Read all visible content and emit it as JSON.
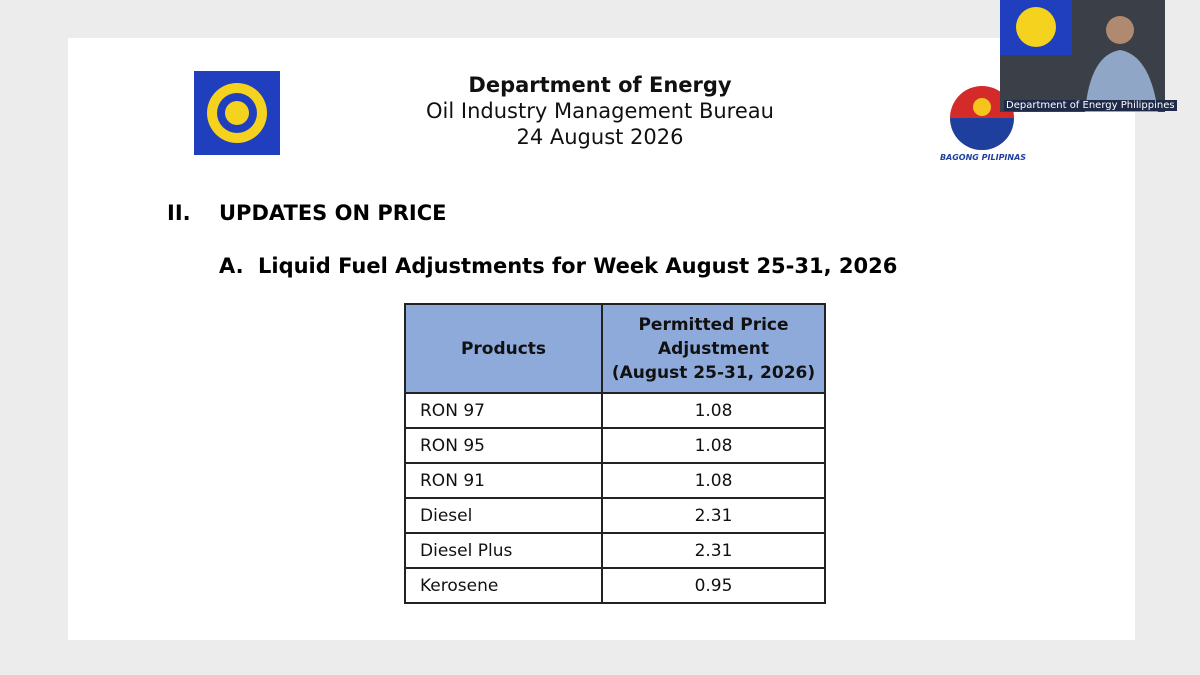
{
  "header": {
    "title": "Department of Energy",
    "subtitle": "Oil Industry Management Bureau",
    "date": "24 August 2026"
  },
  "logo_caption": "BAGONG PILIPINAS",
  "video": {
    "caption": "Department of Energy Philippines"
  },
  "section": {
    "number": "II.",
    "title": "UPDATES ON PRICE"
  },
  "subsection": {
    "number": "A.",
    "title": "Liquid Fuel Adjustments for Week August 25-31, 2026"
  },
  "table": {
    "headers": [
      "Products",
      [
        "Permitted Price",
        "Adjustment",
        "(August 25-31, 2026)"
      ]
    ],
    "rows": [
      [
        "RON 97",
        "1.08"
      ],
      [
        "RON 95",
        "1.08"
      ],
      [
        "RON 91",
        "1.08"
      ],
      [
        "Diesel",
        "2.31"
      ],
      [
        "Diesel Plus",
        "2.31"
      ],
      [
        "Kerosene",
        "0.95"
      ]
    ]
  }
}
